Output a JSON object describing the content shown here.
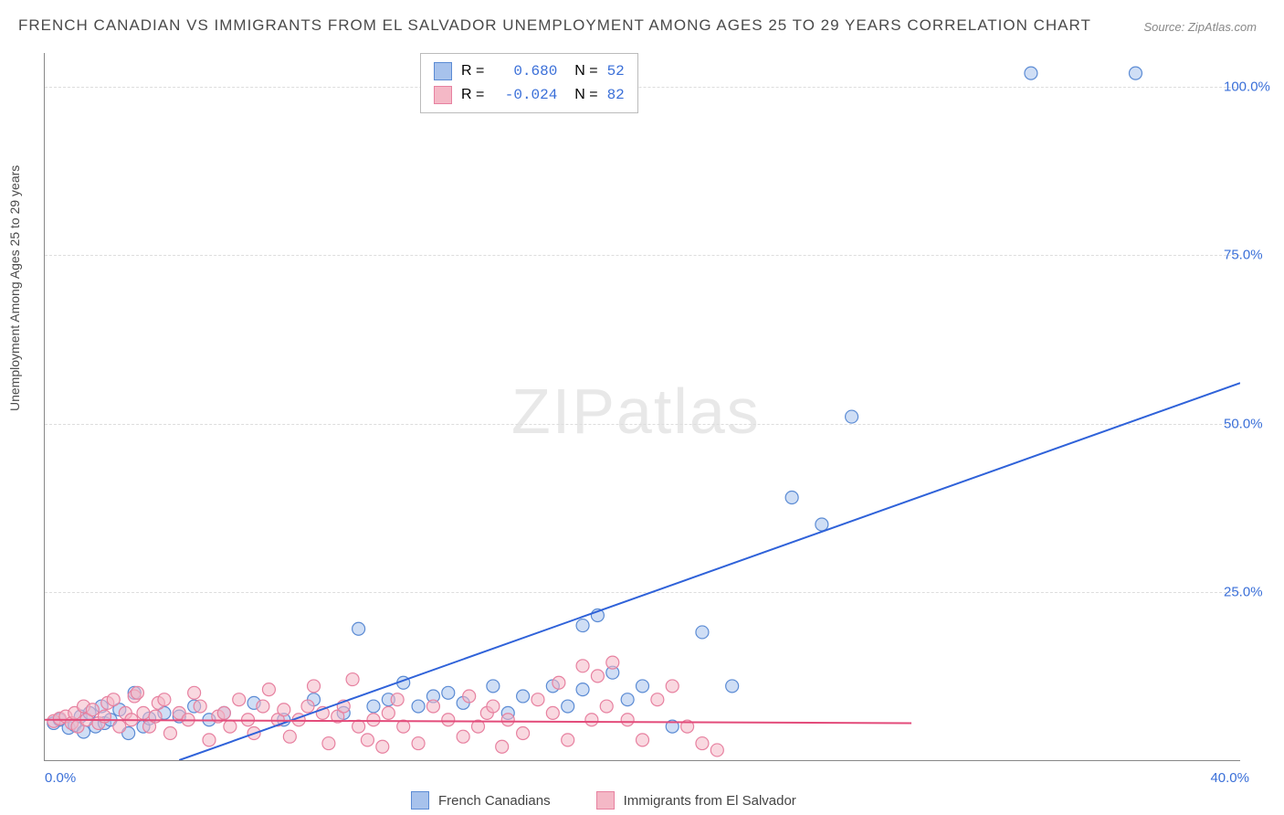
{
  "title": "FRENCH CANADIAN VS IMMIGRANTS FROM EL SALVADOR UNEMPLOYMENT AMONG AGES 25 TO 29 YEARS CORRELATION CHART",
  "source": "Source: ZipAtlas.com",
  "ylabel": "Unemployment Among Ages 25 to 29 years",
  "watermark": "ZIPatlas",
  "chart": {
    "type": "scatter",
    "xlim": [
      0,
      40
    ],
    "ylim": [
      0,
      105
    ],
    "xtick_labels": [
      "0.0%",
      "40.0%"
    ],
    "ytick_values": [
      25,
      50,
      75,
      100
    ],
    "ytick_labels": [
      "25.0%",
      "50.0%",
      "75.0%",
      "100.0%"
    ],
    "background_color": "#ffffff",
    "grid_color": "#dddddd",
    "axis_color": "#888888",
    "marker_radius": 7,
    "marker_opacity": 0.55,
    "series": [
      {
        "name": "French Canadians",
        "color_fill": "#a7c2ec",
        "color_stroke": "#5b8bd4",
        "r": "0.680",
        "n": "52",
        "regression": {
          "x1": 4.5,
          "y1": 0,
          "x2": 40,
          "y2": 56,
          "color": "#2f62d9",
          "width": 2
        },
        "points": [
          [
            0.3,
            5.5
          ],
          [
            0.5,
            6.0
          ],
          [
            0.8,
            4.8
          ],
          [
            1.0,
            5.2
          ],
          [
            1.2,
            6.5
          ],
          [
            1.3,
            4.2
          ],
          [
            1.5,
            7.0
          ],
          [
            1.7,
            5.0
          ],
          [
            1.9,
            8.0
          ],
          [
            2.0,
            5.5
          ],
          [
            2.2,
            6.0
          ],
          [
            2.5,
            7.5
          ],
          [
            2.8,
            4.0
          ],
          [
            3.0,
            10.0
          ],
          [
            3.3,
            5.0
          ],
          [
            3.5,
            6.2
          ],
          [
            4.0,
            7.0
          ],
          [
            4.5,
            6.5
          ],
          [
            5.0,
            8.0
          ],
          [
            5.5,
            6.0
          ],
          [
            6.0,
            7.0
          ],
          [
            7.0,
            8.5
          ],
          [
            8.0,
            6.0
          ],
          [
            9.0,
            9.0
          ],
          [
            10.0,
            7.0
          ],
          [
            10.5,
            19.5
          ],
          [
            11.0,
            8.0
          ],
          [
            11.5,
            9.0
          ],
          [
            12.0,
            11.5
          ],
          [
            12.5,
            8.0
          ],
          [
            13.0,
            9.5
          ],
          [
            13.5,
            10.0
          ],
          [
            14.0,
            8.5
          ],
          [
            15.0,
            11.0
          ],
          [
            15.5,
            7.0
          ],
          [
            16.0,
            9.5
          ],
          [
            17.0,
            11.0
          ],
          [
            17.5,
            8.0
          ],
          [
            18.0,
            20.0
          ],
          [
            18.0,
            10.5
          ],
          [
            18.5,
            21.5
          ],
          [
            19.0,
            13.0
          ],
          [
            19.5,
            9.0
          ],
          [
            20.0,
            11.0
          ],
          [
            21.0,
            5.0
          ],
          [
            22.0,
            19.0
          ],
          [
            23.0,
            11.0
          ],
          [
            25.0,
            39.0
          ],
          [
            26.0,
            35.0
          ],
          [
            27.0,
            51.0
          ],
          [
            33.0,
            102.0
          ],
          [
            36.5,
            102.0
          ]
        ]
      },
      {
        "name": "Immigrants from El Salvador",
        "color_fill": "#f4b8c6",
        "color_stroke": "#e781a0",
        "r": "-0.024",
        "n": "82",
        "regression": {
          "x1": 0,
          "y1": 6.0,
          "x2": 29,
          "y2": 5.5,
          "color": "#e34b7a",
          "width": 2
        },
        "points": [
          [
            0.3,
            5.8
          ],
          [
            0.5,
            6.2
          ],
          [
            0.7,
            6.5
          ],
          [
            0.9,
            5.5
          ],
          [
            1.0,
            7.0
          ],
          [
            1.1,
            5.0
          ],
          [
            1.3,
            8.0
          ],
          [
            1.4,
            6.0
          ],
          [
            1.6,
            7.5
          ],
          [
            1.8,
            5.5
          ],
          [
            2.0,
            6.5
          ],
          [
            2.1,
            8.5
          ],
          [
            2.3,
            9.0
          ],
          [
            2.5,
            5.0
          ],
          [
            2.7,
            7.0
          ],
          [
            2.9,
            6.0
          ],
          [
            3.0,
            9.5
          ],
          [
            3.1,
            10.0
          ],
          [
            3.3,
            7.0
          ],
          [
            3.5,
            5.0
          ],
          [
            3.7,
            6.5
          ],
          [
            3.8,
            8.5
          ],
          [
            4.0,
            9.0
          ],
          [
            4.2,
            4.0
          ],
          [
            4.5,
            7.0
          ],
          [
            4.8,
            6.0
          ],
          [
            5.0,
            10.0
          ],
          [
            5.2,
            8.0
          ],
          [
            5.5,
            3.0
          ],
          [
            5.8,
            6.5
          ],
          [
            6.0,
            7.0
          ],
          [
            6.2,
            5.0
          ],
          [
            6.5,
            9.0
          ],
          [
            6.8,
            6.0
          ],
          [
            7.0,
            4.0
          ],
          [
            7.3,
            8.0
          ],
          [
            7.5,
            10.5
          ],
          [
            7.8,
            6.0
          ],
          [
            8.0,
            7.5
          ],
          [
            8.2,
            3.5
          ],
          [
            8.5,
            6.0
          ],
          [
            8.8,
            8.0
          ],
          [
            9.0,
            11.0
          ],
          [
            9.3,
            7.0
          ],
          [
            9.5,
            2.5
          ],
          [
            9.8,
            6.5
          ],
          [
            10.0,
            8.0
          ],
          [
            10.3,
            12.0
          ],
          [
            10.5,
            5.0
          ],
          [
            10.8,
            3.0
          ],
          [
            11.0,
            6.0
          ],
          [
            11.3,
            2.0
          ],
          [
            11.5,
            7.0
          ],
          [
            11.8,
            9.0
          ],
          [
            12.0,
            5.0
          ],
          [
            12.5,
            2.5
          ],
          [
            13.0,
            8.0
          ],
          [
            13.5,
            6.0
          ],
          [
            14.0,
            3.5
          ],
          [
            14.2,
            9.5
          ],
          [
            14.5,
            5.0
          ],
          [
            14.8,
            7.0
          ],
          [
            15.0,
            8.0
          ],
          [
            15.3,
            2.0
          ],
          [
            15.5,
            6.0
          ],
          [
            16.0,
            4.0
          ],
          [
            16.5,
            9.0
          ],
          [
            17.0,
            7.0
          ],
          [
            17.2,
            11.5
          ],
          [
            17.5,
            3.0
          ],
          [
            18.0,
            14.0
          ],
          [
            18.3,
            6.0
          ],
          [
            18.5,
            12.5
          ],
          [
            18.8,
            8.0
          ],
          [
            19.0,
            14.5
          ],
          [
            19.5,
            6.0
          ],
          [
            20.0,
            3.0
          ],
          [
            20.5,
            9.0
          ],
          [
            21.0,
            11.0
          ],
          [
            21.5,
            5.0
          ],
          [
            22.0,
            2.5
          ],
          [
            22.5,
            1.5
          ]
        ]
      }
    ]
  },
  "legend_bottom": [
    {
      "label": "French Canadians",
      "fill": "#a7c2ec",
      "stroke": "#5b8bd4"
    },
    {
      "label": "Immigrants from El Salvador",
      "fill": "#f4b8c6",
      "stroke": "#e781a0"
    }
  ]
}
